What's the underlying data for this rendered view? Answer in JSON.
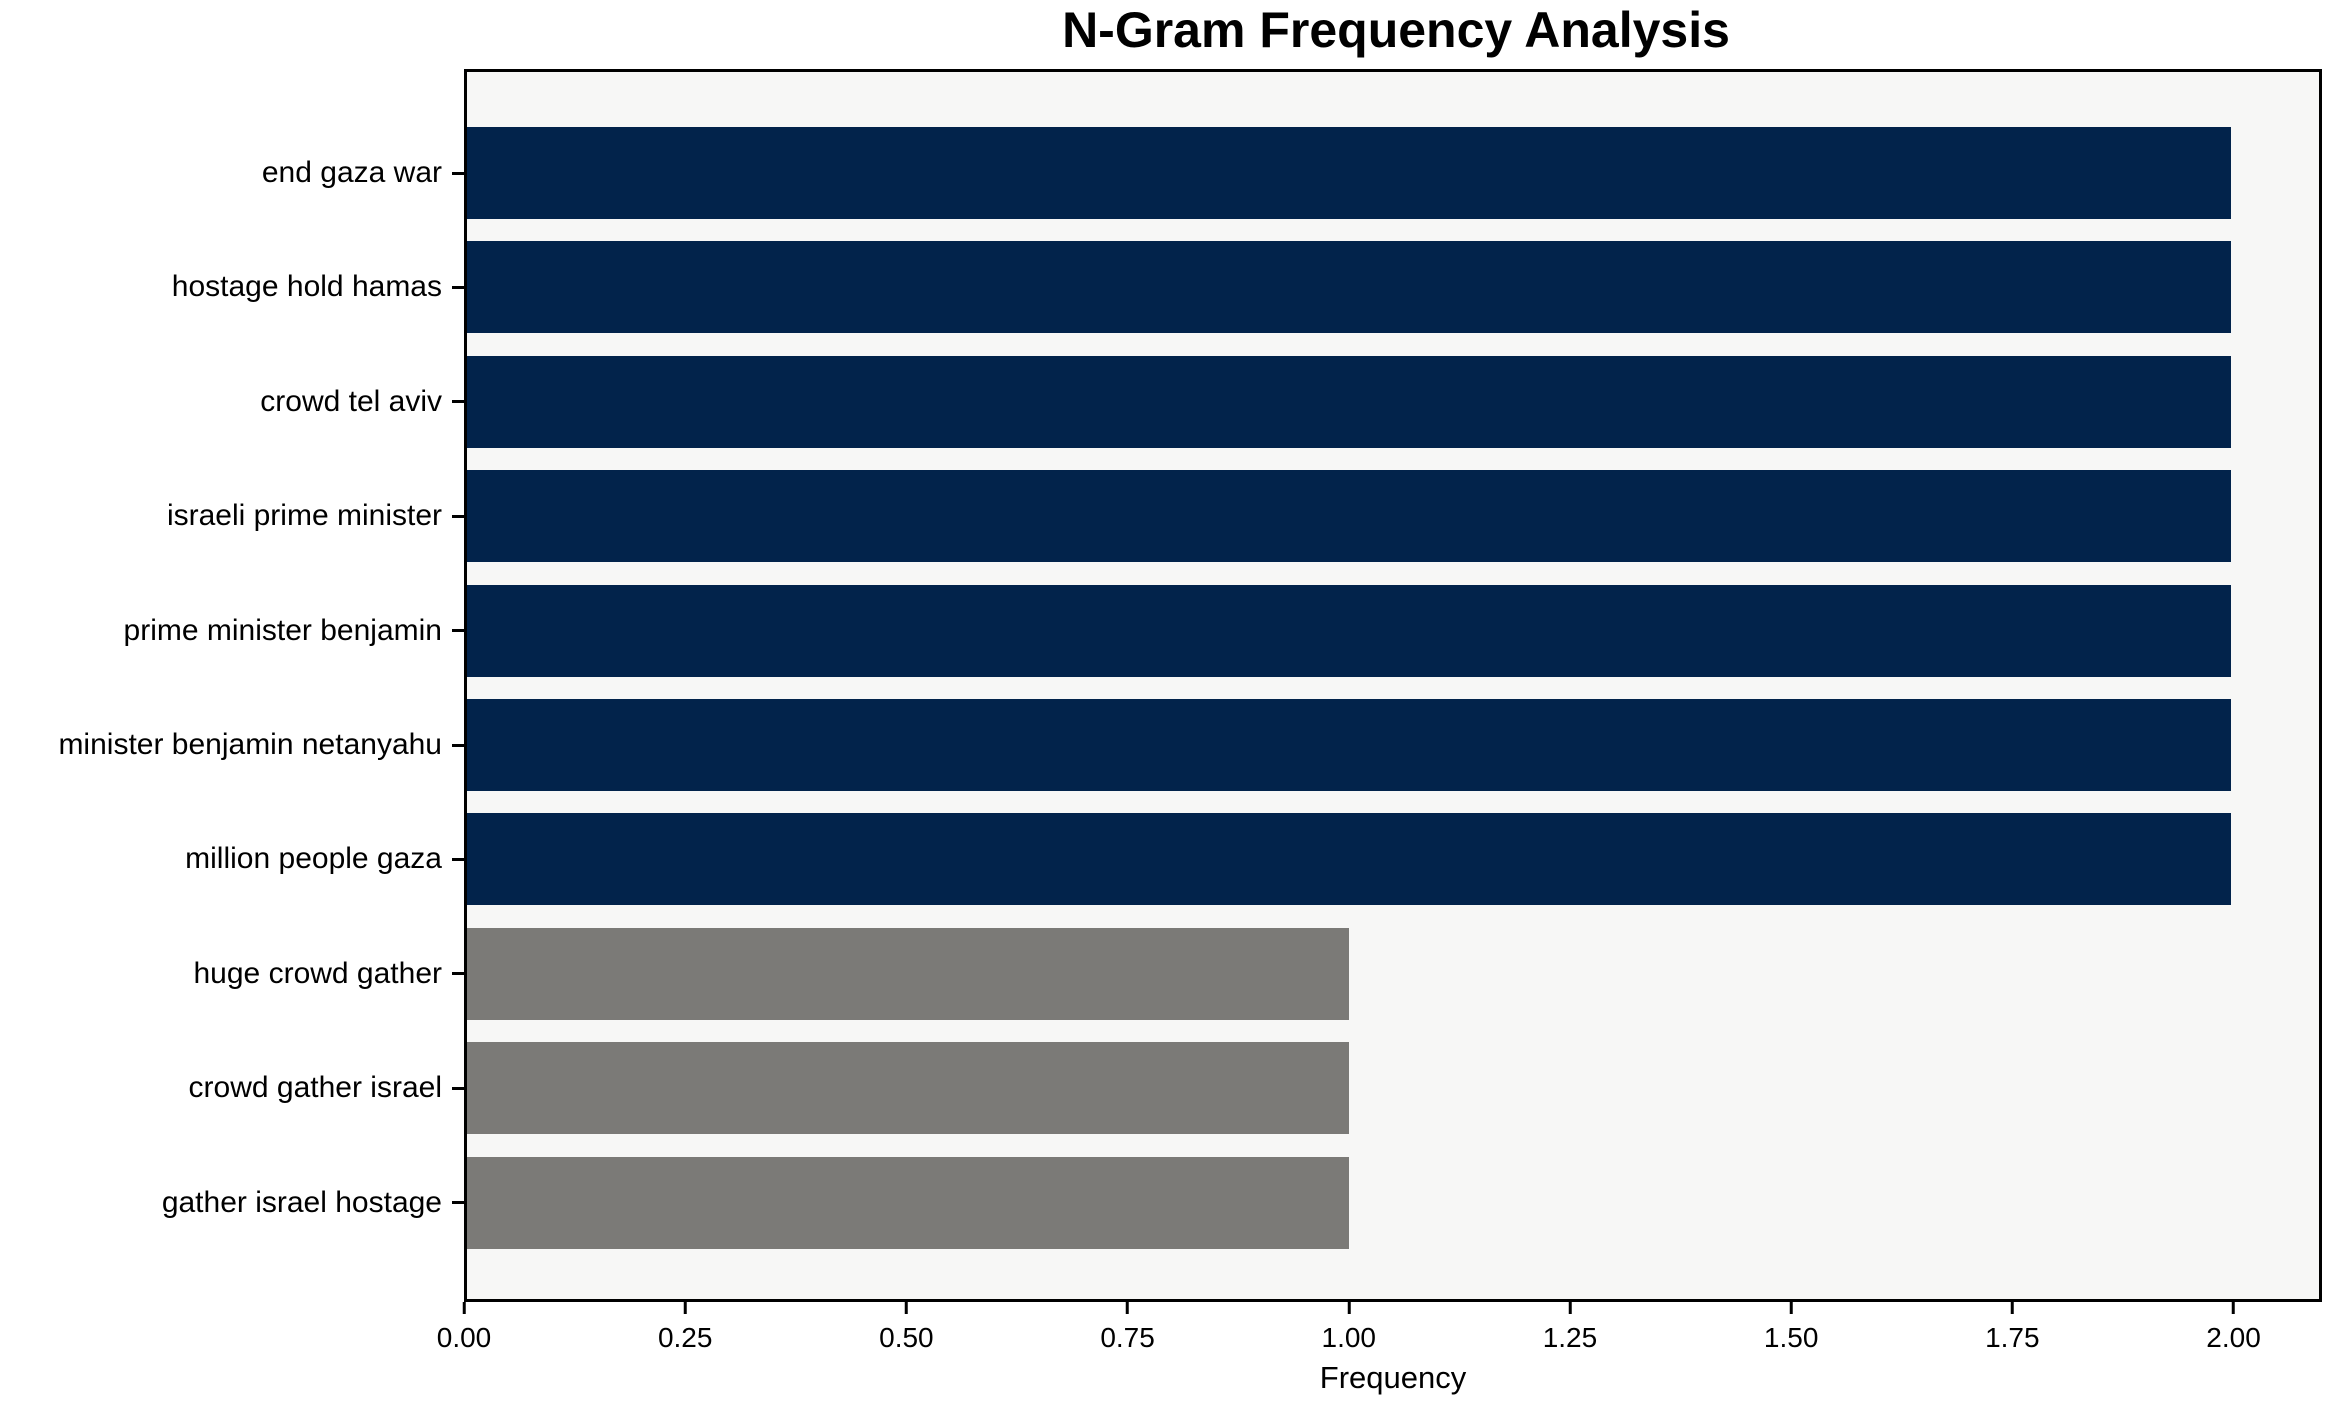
{
  "title": "N-Gram Frequency Analysis",
  "xlabel": "Frequency",
  "chart_data": {
    "type": "bar",
    "orientation": "horizontal",
    "title": "N-Gram Frequency Analysis",
    "xlabel": "Frequency",
    "ylabel": "",
    "categories": [
      "end gaza war",
      "hostage hold hamas",
      "crowd tel aviv",
      "israeli prime minister",
      "prime minister benjamin",
      "minister benjamin netanyahu",
      "million people gaza",
      "huge crowd gather",
      "crowd gather israel",
      "gather israel hostage"
    ],
    "values": [
      2,
      2,
      2,
      2,
      2,
      2,
      2,
      1,
      1,
      1
    ],
    "bar_colors": [
      "#02234b",
      "#02234b",
      "#02234b",
      "#02234b",
      "#02234b",
      "#02234b",
      "#02234b",
      "#7b7a77",
      "#7b7a77",
      "#7b7a77"
    ],
    "xlim": [
      0,
      2.1
    ],
    "xticks": [
      "0.00",
      "0.25",
      "0.50",
      "0.75",
      "1.00",
      "1.25",
      "1.50",
      "1.75",
      "2.00"
    ],
    "grid": false,
    "legend": null,
    "colors": {
      "high_frequency_bar": "#02234b",
      "low_frequency_bar": "#7b7a77",
      "plot_background": "#f7f7f6",
      "figure_background": "#ffffff",
      "spine": "#000000",
      "text": "#000000"
    }
  }
}
